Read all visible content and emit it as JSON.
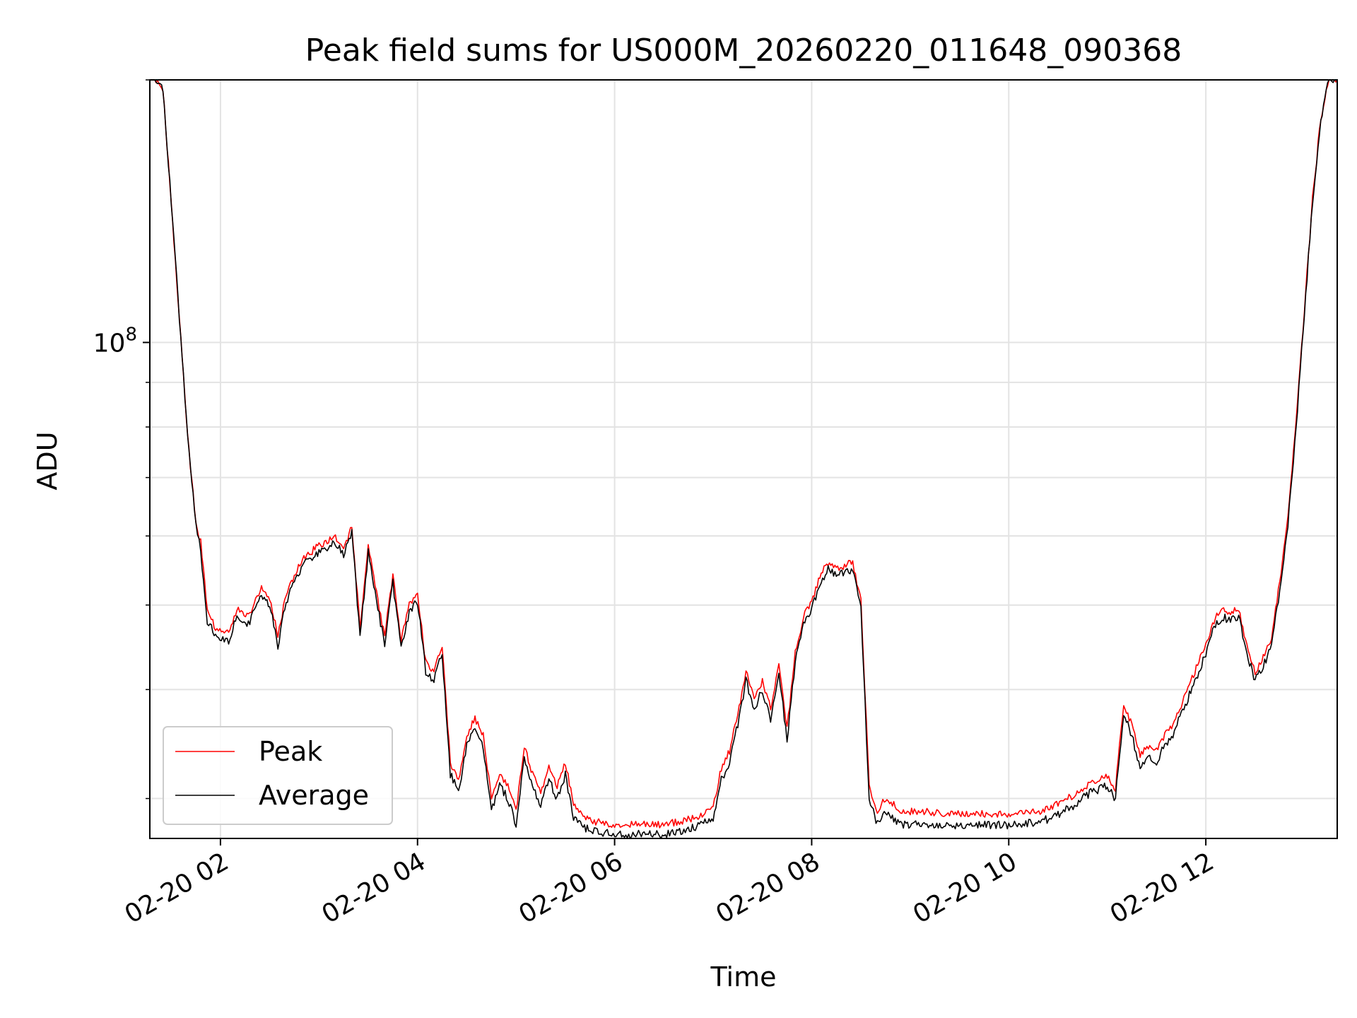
{
  "chart_data": {
    "type": "line",
    "title": "Peak field sums for US000M_20260220_011648_090368",
    "xlabel": "Time",
    "ylabel": "ADU",
    "y_scale": "log",
    "x_range": [
      "2026-02-20 01:17",
      "2026-02-20 13:20"
    ],
    "ylim": [
      27000000,
      200000000
    ],
    "x_ticks": [
      "02-20 02",
      "02-20 04",
      "02-20 06",
      "02-20 08",
      "02-20 10",
      "02-20 12"
    ],
    "y_major_ticks": [
      {
        "value": 100000000,
        "base": "10",
        "exponent": "8"
      }
    ],
    "y_minor_ticks": [
      30000000,
      40000000,
      50000000,
      60000000,
      70000000,
      80000000,
      90000000,
      200000000
    ],
    "grid": true,
    "legend": {
      "placement": "lower-left",
      "entries": [
        "Peak",
        "Average"
      ]
    },
    "colors": {
      "Peak": "#ff0000",
      "Average": "#000000"
    },
    "series": [
      {
        "name": "Average",
        "x": [
          "2026-02-20 01:17",
          "2026-02-20 01:20",
          "2026-02-20 01:25",
          "2026-02-20 01:30",
          "2026-02-20 01:35",
          "2026-02-20 01:40",
          "2026-02-20 01:45",
          "2026-02-20 01:48",
          "2026-02-20 01:52",
          "2026-02-20 01:57",
          "2026-02-20 02:05",
          "2026-02-20 02:10",
          "2026-02-20 02:17",
          "2026-02-20 02:25",
          "2026-02-20 02:30",
          "2026-02-20 02:35",
          "2026-02-20 02:40",
          "2026-02-20 02:45",
          "2026-02-20 02:50",
          "2026-02-20 03:00",
          "2026-02-20 03:10",
          "2026-02-20 03:15",
          "2026-02-20 03:20",
          "2026-02-20 03:25",
          "2026-02-20 03:30",
          "2026-02-20 03:35",
          "2026-02-20 03:40",
          "2026-02-20 03:45",
          "2026-02-20 03:50",
          "2026-02-20 03:55",
          "2026-02-20 04:00",
          "2026-02-20 04:05",
          "2026-02-20 04:10",
          "2026-02-20 04:15",
          "2026-02-20 04:20",
          "2026-02-20 04:25",
          "2026-02-20 04:30",
          "2026-02-20 04:35",
          "2026-02-20 04:40",
          "2026-02-20 04:45",
          "2026-02-20 04:50",
          "2026-02-20 04:55",
          "2026-02-20 05:00",
          "2026-02-20 05:05",
          "2026-02-20 05:10",
          "2026-02-20 05:15",
          "2026-02-20 05:20",
          "2026-02-20 05:25",
          "2026-02-20 05:30",
          "2026-02-20 05:35",
          "2026-02-20 05:45",
          "2026-02-20 06:00",
          "2026-02-20 06:30",
          "2026-02-20 06:50",
          "2026-02-20 07:00",
          "2026-02-20 07:05",
          "2026-02-20 07:10",
          "2026-02-20 07:15",
          "2026-02-20 07:20",
          "2026-02-20 07:25",
          "2026-02-20 07:30",
          "2026-02-20 07:35",
          "2026-02-20 07:40",
          "2026-02-20 07:45",
          "2026-02-20 07:50",
          "2026-02-20 07:55",
          "2026-02-20 08:00",
          "2026-02-20 08:05",
          "2026-02-20 08:10",
          "2026-02-20 08:15",
          "2026-02-20 08:25",
          "2026-02-20 08:30",
          "2026-02-20 08:35",
          "2026-02-20 08:40",
          "2026-02-20 08:45",
          "2026-02-20 08:50",
          "2026-02-20 08:55",
          "2026-02-20 09:05",
          "2026-02-20 09:30",
          "2026-02-20 10:00",
          "2026-02-20 10:20",
          "2026-02-20 10:30",
          "2026-02-20 10:40",
          "2026-02-20 10:50",
          "2026-02-20 11:00",
          "2026-02-20 11:05",
          "2026-02-20 11:10",
          "2026-02-20 11:15",
          "2026-02-20 11:20",
          "2026-02-20 11:25",
          "2026-02-20 11:30",
          "2026-02-20 11:35",
          "2026-02-20 11:40",
          "2026-02-20 11:50",
          "2026-02-20 12:00",
          "2026-02-20 12:05",
          "2026-02-20 12:10",
          "2026-02-20 12:15",
          "2026-02-20 12:20",
          "2026-02-20 12:25",
          "2026-02-20 12:30",
          "2026-02-20 12:35",
          "2026-02-20 12:40",
          "2026-02-20 12:45",
          "2026-02-20 12:50",
          "2026-02-20 12:55",
          "2026-02-20 13:00",
          "2026-02-20 13:05",
          "2026-02-20 13:10",
          "2026-02-20 13:15",
          "2026-02-20 13:20"
        ],
        "y": [
          200000000,
          201000000,
          195000000,
          145000000,
          107000000,
          78000000,
          62000000,
          57500000,
          48000000,
          46000000,
          45500000,
          48500000,
          47500000,
          51500000,
          50000000,
          45000000,
          50500000,
          53000000,
          55500000,
          57500000,
          59000000,
          57000000,
          60500000,
          46000000,
          57500000,
          50500000,
          45000000,
          53000000,
          44500000,
          49000000,
          50500000,
          42000000,
          41000000,
          44000000,
          32000000,
          30500000,
          34500000,
          36000000,
          34500000,
          29000000,
          31000000,
          30000000,
          28000000,
          33500000,
          31000000,
          29500000,
          31500000,
          30000000,
          32000000,
          28500000,
          27500000,
          27300000,
          27300000,
          27800000,
          28500000,
          31500000,
          33000000,
          36500000,
          41000000,
          38000000,
          40000000,
          37000000,
          42000000,
          35000000,
          43000000,
          47500000,
          49500000,
          53000000,
          55000000,
          54000000,
          55000000,
          49500000,
          30000000,
          28000000,
          29000000,
          28500000,
          28000000,
          28000000,
          28000000,
          28000000,
          28200000,
          28800000,
          29500000,
          30500000,
          31000000,
          30000000,
          37500000,
          35500000,
          32500000,
          33500000,
          33000000,
          34500000,
          35500000,
          39500000,
          44000000,
          47000000,
          48500000,
          48000000,
          48500000,
          44000000,
          41000000,
          42500000,
          45000000,
          52000000,
          62000000,
          80000000,
          108000000,
          145000000,
          180000000,
          200000000,
          200000000
        ]
      },
      {
        "name": "Peak",
        "x": [
          "2026-02-20 01:17",
          "2026-02-20 01:20",
          "2026-02-20 01:25",
          "2026-02-20 01:30",
          "2026-02-20 01:35",
          "2026-02-20 01:40",
          "2026-02-20 01:45",
          "2026-02-20 01:48",
          "2026-02-20 01:52",
          "2026-02-20 01:57",
          "2026-02-20 02:05",
          "2026-02-20 02:10",
          "2026-02-20 02:17",
          "2026-02-20 02:25",
          "2026-02-20 02:30",
          "2026-02-20 02:35",
          "2026-02-20 02:40",
          "2026-02-20 02:45",
          "2026-02-20 02:50",
          "2026-02-20 03:00",
          "2026-02-20 03:10",
          "2026-02-20 03:15",
          "2026-02-20 03:20",
          "2026-02-20 03:25",
          "2026-02-20 03:30",
          "2026-02-20 03:35",
          "2026-02-20 03:40",
          "2026-02-20 03:45",
          "2026-02-20 03:50",
          "2026-02-20 03:55",
          "2026-02-20 04:00",
          "2026-02-20 04:05",
          "2026-02-20 04:10",
          "2026-02-20 04:15",
          "2026-02-20 04:20",
          "2026-02-20 04:25",
          "2026-02-20 04:30",
          "2026-02-20 04:35",
          "2026-02-20 04:40",
          "2026-02-20 04:45",
          "2026-02-20 04:50",
          "2026-02-20 04:55",
          "2026-02-20 05:00",
          "2026-02-20 05:05",
          "2026-02-20 05:10",
          "2026-02-20 05:15",
          "2026-02-20 05:20",
          "2026-02-20 05:25",
          "2026-02-20 05:30",
          "2026-02-20 05:35",
          "2026-02-20 05:45",
          "2026-02-20 06:00",
          "2026-02-20 06:30",
          "2026-02-20 06:50",
          "2026-02-20 07:00",
          "2026-02-20 07:05",
          "2026-02-20 07:10",
          "2026-02-20 07:15",
          "2026-02-20 07:20",
          "2026-02-20 07:25",
          "2026-02-20 07:30",
          "2026-02-20 07:35",
          "2026-02-20 07:40",
          "2026-02-20 07:45",
          "2026-02-20 07:50",
          "2026-02-20 07:55",
          "2026-02-20 08:00",
          "2026-02-20 08:05",
          "2026-02-20 08:10",
          "2026-02-20 08:15",
          "2026-02-20 08:25",
          "2026-02-20 08:30",
          "2026-02-20 08:35",
          "2026-02-20 08:40",
          "2026-02-20 08:45",
          "2026-02-20 08:50",
          "2026-02-20 08:55",
          "2026-02-20 09:05",
          "2026-02-20 09:30",
          "2026-02-20 10:00",
          "2026-02-20 10:20",
          "2026-02-20 10:30",
          "2026-02-20 10:40",
          "2026-02-20 10:50",
          "2026-02-20 11:00",
          "2026-02-20 11:05",
          "2026-02-20 11:10",
          "2026-02-20 11:15",
          "2026-02-20 11:20",
          "2026-02-20 11:25",
          "2026-02-20 11:30",
          "2026-02-20 11:35",
          "2026-02-20 11:40",
          "2026-02-20 11:50",
          "2026-02-20 12:00",
          "2026-02-20 12:05",
          "2026-02-20 12:10",
          "2026-02-20 12:15",
          "2026-02-20 12:20",
          "2026-02-20 12:25",
          "2026-02-20 12:30",
          "2026-02-20 12:35",
          "2026-02-20 12:40",
          "2026-02-20 12:45",
          "2026-02-20 12:50",
          "2026-02-20 12:55",
          "2026-02-20 13:00",
          "2026-02-20 13:05",
          "2026-02-20 13:10",
          "2026-02-20 13:15",
          "2026-02-20 13:20"
        ],
        "y": [
          200000000,
          201000000,
          195000000,
          145000000,
          107000000,
          78000000,
          62000000,
          59000000,
          49500000,
          47000000,
          46500000,
          49500000,
          48500000,
          52500000,
          51000000,
          46000000,
          51500000,
          54000000,
          56500000,
          58500000,
          60000000,
          58000000,
          61500000,
          47000000,
          58500000,
          51500000,
          46000000,
          54000000,
          45500000,
          50000000,
          51500000,
          43000000,
          42000000,
          45000000,
          33000000,
          31500000,
          35500000,
          37000000,
          35500000,
          30000000,
          32000000,
          31000000,
          29000000,
          34500000,
          32000000,
          30500000,
          32500000,
          31000000,
          33000000,
          29500000,
          28300000,
          28000000,
          28000000,
          28500000,
          29300000,
          32500000,
          34000000,
          37500000,
          42000000,
          39000000,
          41000000,
          38000000,
          43000000,
          36000000,
          44000000,
          48500000,
          50500000,
          54000000,
          56000000,
          55000000,
          56000000,
          50500000,
          31000000,
          29000000,
          30000000,
          29500000,
          29000000,
          29000000,
          28800000,
          28800000,
          29000000,
          29600000,
          30300000,
          31300000,
          31800000,
          30800000,
          38500000,
          36500000,
          33500000,
          34500000,
          34000000,
          35500000,
          36500000,
          40500000,
          45000000,
          48000000,
          49500000,
          49000000,
          49500000,
          45000000,
          42000000,
          43500000,
          46000000,
          53000000,
          63000000,
          81000000,
          109000000,
          146000000,
          181000000,
          200000000,
          200000000
        ]
      }
    ]
  }
}
